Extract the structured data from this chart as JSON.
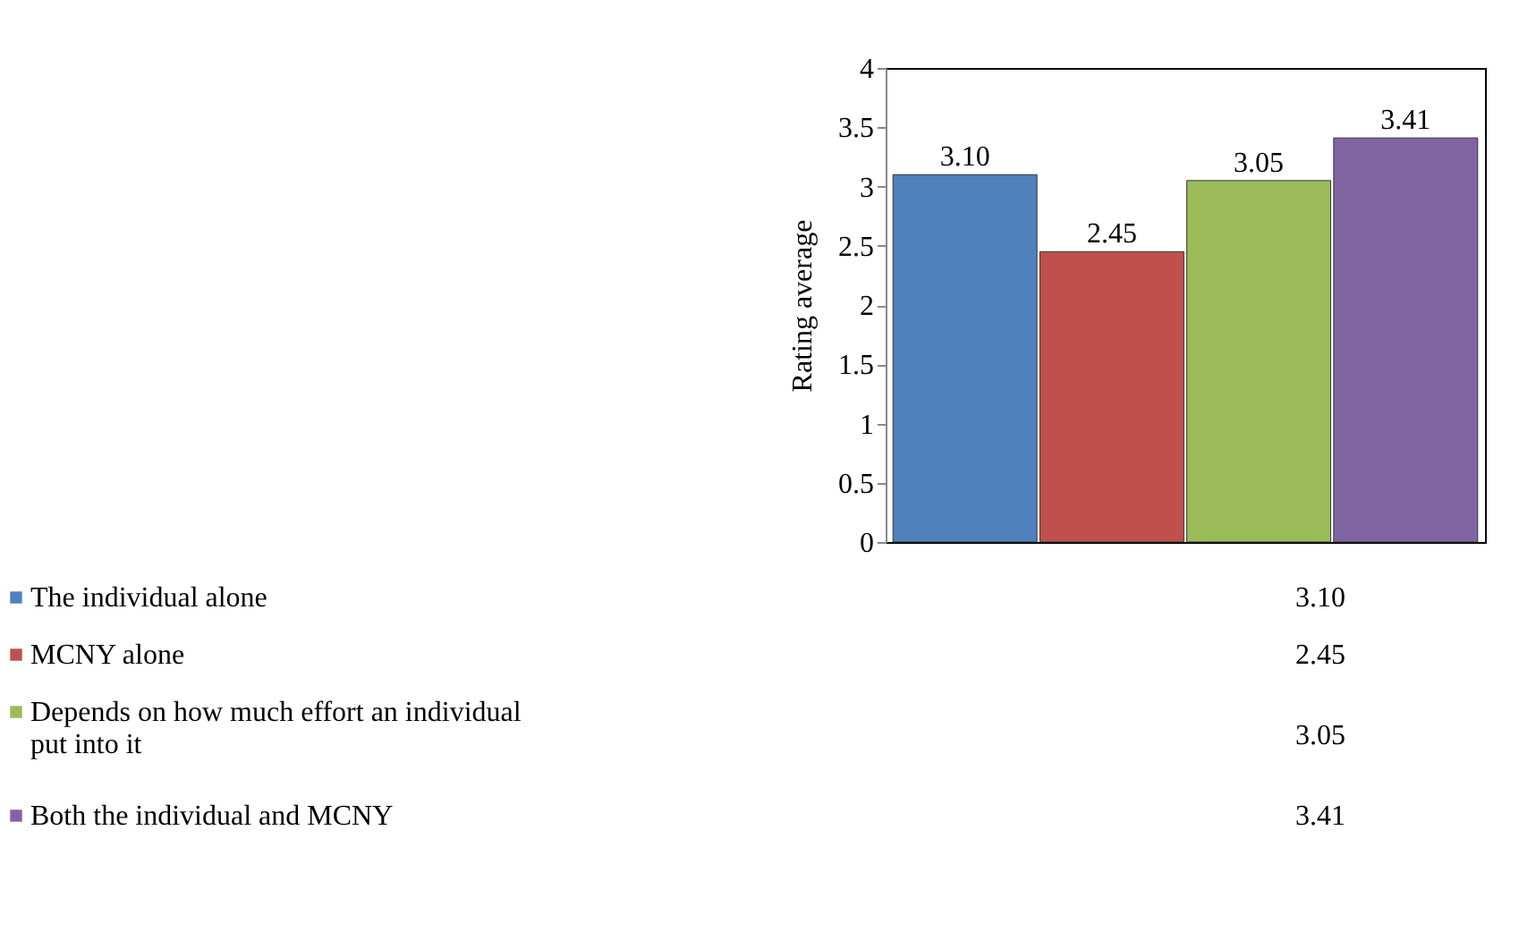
{
  "chart_data": {
    "type": "bar",
    "ylabel": "Rating average",
    "categories": [
      null
    ],
    "series": [
      {
        "name": "The individual alone",
        "color": "#4f81bd",
        "values": [
          3.1
        ],
        "value_labels": [
          "3.10"
        ]
      },
      {
        "name": "MCNY alone",
        "color": "#c0504d",
        "values": [
          2.45
        ],
        "value_labels": [
          "2.45"
        ]
      },
      {
        "name": "Depends on how much effort an individual put into it",
        "color": "#9bbb59",
        "values": [
          3.05
        ],
        "value_labels": [
          "3.05"
        ]
      },
      {
        "name": "Both the individual and MCNY",
        "color": "#8064a2",
        "values": [
          3.41
        ],
        "value_labels": [
          "3.41"
        ]
      }
    ],
    "ylim": [
      0,
      4
    ],
    "yticks": [
      0,
      0.5,
      1,
      1.5,
      2,
      2.5,
      3,
      3.5,
      4
    ],
    "grid": false,
    "legend": "bottom"
  }
}
